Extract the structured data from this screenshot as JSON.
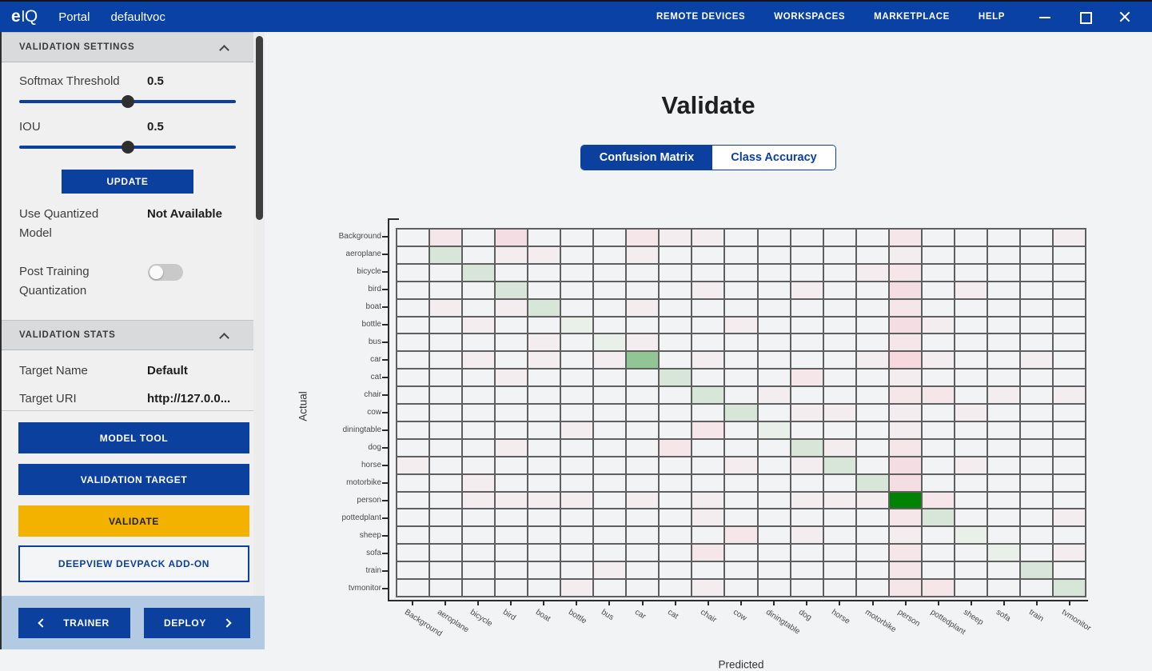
{
  "titlebar": {
    "logo": "eIQ",
    "portal": "Portal",
    "project": "defaultvoc",
    "menu": [
      "REMOTE DEVICES",
      "WORKSPACES",
      "MARKETPLACE",
      "HELP"
    ]
  },
  "sidebar": {
    "validation_settings": {
      "header": "VALIDATION SETTINGS",
      "softmax_label": "Softmax Threshold",
      "softmax_value": "0.5",
      "softmax_percent": 50,
      "iou_label": "IOU",
      "iou_value": "0.5",
      "iou_percent": 50,
      "update_button": "UPDATE",
      "use_quantized_label": "Use Quantized Model",
      "use_quantized_value": "Not Available",
      "ptq_label": "Post Training Quantization",
      "ptq_enabled": false
    },
    "validation_stats": {
      "header": "VALIDATION STATS",
      "target_name_label": "Target Name",
      "target_name_value": "Default",
      "target_uri_label": "Target URI",
      "target_uri_value": "http://127.0.0..."
    },
    "buttons": {
      "model_tool": "MODEL TOOL",
      "validation_target": "VALIDATION TARGET",
      "validate": "VALIDATE",
      "devpack": "DEEPVIEW DEVPACK ADD-ON"
    },
    "footer": {
      "trainer": "TRAINER",
      "deploy": "DEPLOY"
    }
  },
  "main": {
    "title": "Validate",
    "tabs": [
      {
        "label": "Confusion Matrix",
        "active": true
      },
      {
        "label": "Class Accuracy",
        "active": false
      }
    ]
  },
  "chart_data": {
    "type": "heatmap",
    "title": "Confusion Matrix",
    "xlabel": "Predicted",
    "ylabel": "Actual",
    "legend": "none",
    "categories": [
      "Background",
      "aeroplane",
      "bicycle",
      "bird",
      "boat",
      "bottle",
      "bus",
      "car",
      "cat",
      "chair",
      "cow",
      "diningtable",
      "dog",
      "horse",
      "motorbike",
      "person",
      "pottedplant",
      "sheep",
      "sofa",
      "train",
      "tvmonitor"
    ],
    "base_cell_color": "#f2f3f5",
    "grid_color": "#5f5f5f",
    "palette": {
      "g1": "#e9f0ea",
      "g2": "#d7e6d8",
      "g3": "#92c594",
      "g4": "#028202",
      "p1": "#f4edef",
      "p2": "#f5e6e9",
      "p3": "#f5dee3",
      "p4": "#f6d8de"
    },
    "cells": [
      [
        "aeroplane",
        "aeroplane",
        "g2"
      ],
      [
        "bicycle",
        "bicycle",
        "g2"
      ],
      [
        "bird",
        "bird",
        "g2"
      ],
      [
        "boat",
        "boat",
        "g2"
      ],
      [
        "bottle",
        "bottle",
        "g1"
      ],
      [
        "bus",
        "bus",
        "g1"
      ],
      [
        "car",
        "car",
        "g3"
      ],
      [
        "cat",
        "cat",
        "g2"
      ],
      [
        "chair",
        "chair",
        "g2"
      ],
      [
        "cow",
        "cow",
        "g2"
      ],
      [
        "diningtable",
        "diningtable",
        "g1"
      ],
      [
        "dog",
        "dog",
        "g2"
      ],
      [
        "horse",
        "horse",
        "g2"
      ],
      [
        "motorbike",
        "motorbike",
        "g2"
      ],
      [
        "person",
        "person",
        "g4"
      ],
      [
        "pottedplant",
        "pottedplant",
        "g2"
      ],
      [
        "sheep",
        "sheep",
        "g1"
      ],
      [
        "sofa",
        "sofa",
        "g1"
      ],
      [
        "train",
        "train",
        "g2"
      ],
      [
        "tvmonitor",
        "tvmonitor",
        "g2"
      ],
      [
        "Background",
        "aeroplane",
        "p2"
      ],
      [
        "Background",
        "bird",
        "p3"
      ],
      [
        "Background",
        "car",
        "p2"
      ],
      [
        "Background",
        "cat",
        "p1"
      ],
      [
        "Background",
        "chair",
        "p1"
      ],
      [
        "Background",
        "person",
        "p2"
      ],
      [
        "Background",
        "tvmonitor",
        "p1"
      ],
      [
        "aeroplane",
        "bird",
        "p1"
      ],
      [
        "aeroplane",
        "boat",
        "p1"
      ],
      [
        "aeroplane",
        "car",
        "p1"
      ],
      [
        "aeroplane",
        "person",
        "p1"
      ],
      [
        "bicycle",
        "motorbike",
        "p1"
      ],
      [
        "bicycle",
        "person",
        "p2"
      ],
      [
        "bird",
        "chair",
        "p1"
      ],
      [
        "bird",
        "dog",
        "p1"
      ],
      [
        "bird",
        "person",
        "p3"
      ],
      [
        "bird",
        "sheep",
        "p1"
      ],
      [
        "boat",
        "aeroplane",
        "p1"
      ],
      [
        "boat",
        "bird",
        "p1"
      ],
      [
        "boat",
        "car",
        "p1"
      ],
      [
        "boat",
        "person",
        "p2"
      ],
      [
        "bottle",
        "bicycle",
        "p1"
      ],
      [
        "bottle",
        "cow",
        "p1"
      ],
      [
        "bottle",
        "person",
        "p3"
      ],
      [
        "bottle",
        "pottedplant",
        "p1"
      ],
      [
        "bus",
        "boat",
        "p1"
      ],
      [
        "bus",
        "car",
        "p1"
      ],
      [
        "bus",
        "person",
        "p2"
      ],
      [
        "car",
        "bicycle",
        "p1"
      ],
      [
        "car",
        "boat",
        "p1"
      ],
      [
        "car",
        "bus",
        "p1"
      ],
      [
        "car",
        "chair",
        "p1"
      ],
      [
        "car",
        "motorbike",
        "p1"
      ],
      [
        "car",
        "person",
        "p4"
      ],
      [
        "car",
        "pottedplant",
        "p1"
      ],
      [
        "car",
        "train",
        "p1"
      ],
      [
        "cat",
        "bird",
        "p1"
      ],
      [
        "cat",
        "dog",
        "p2"
      ],
      [
        "cat",
        "person",
        "p1"
      ],
      [
        "chair",
        "diningtable",
        "p1"
      ],
      [
        "chair",
        "person",
        "p2"
      ],
      [
        "chair",
        "pottedplant",
        "p2"
      ],
      [
        "chair",
        "sofa",
        "p1"
      ],
      [
        "chair",
        "tvmonitor",
        "p1"
      ],
      [
        "cow",
        "dog",
        "p1"
      ],
      [
        "cow",
        "horse",
        "p1"
      ],
      [
        "cow",
        "person",
        "p1"
      ],
      [
        "cow",
        "sheep",
        "p1"
      ],
      [
        "diningtable",
        "bottle",
        "p1"
      ],
      [
        "diningtable",
        "chair",
        "p2"
      ],
      [
        "diningtable",
        "person",
        "p1"
      ],
      [
        "dog",
        "bird",
        "p1"
      ],
      [
        "dog",
        "cat",
        "p2"
      ],
      [
        "dog",
        "horse",
        "p1"
      ],
      [
        "dog",
        "person",
        "p2"
      ],
      [
        "horse",
        "Background",
        "p1"
      ],
      [
        "horse",
        "cow",
        "p1"
      ],
      [
        "horse",
        "dog",
        "p1"
      ],
      [
        "horse",
        "person",
        "p3"
      ],
      [
        "horse",
        "sheep",
        "p1"
      ],
      [
        "motorbike",
        "bicycle",
        "p1"
      ],
      [
        "motorbike",
        "person",
        "p3"
      ],
      [
        "person",
        "bicycle",
        "p1"
      ],
      [
        "person",
        "bird",
        "p1"
      ],
      [
        "person",
        "boat",
        "p1"
      ],
      [
        "person",
        "bottle",
        "p1"
      ],
      [
        "person",
        "car",
        "p1"
      ],
      [
        "person",
        "chair",
        "p1"
      ],
      [
        "person",
        "dog",
        "p1"
      ],
      [
        "person",
        "horse",
        "p1"
      ],
      [
        "person",
        "motorbike",
        "p1"
      ],
      [
        "person",
        "pottedplant",
        "p2"
      ],
      [
        "pottedplant",
        "chair",
        "p1"
      ],
      [
        "pottedplant",
        "person",
        "p2"
      ],
      [
        "pottedplant",
        "tvmonitor",
        "p1"
      ],
      [
        "sheep",
        "cow",
        "p2"
      ],
      [
        "sheep",
        "dog",
        "p1"
      ],
      [
        "sheep",
        "person",
        "p1"
      ],
      [
        "sofa",
        "chair",
        "p2"
      ],
      [
        "sofa",
        "person",
        "p2"
      ],
      [
        "sofa",
        "tvmonitor",
        "p1"
      ],
      [
        "train",
        "bus",
        "p1"
      ],
      [
        "train",
        "person",
        "p2"
      ],
      [
        "tvmonitor",
        "bottle",
        "p1"
      ],
      [
        "tvmonitor",
        "chair",
        "p1"
      ],
      [
        "tvmonitor",
        "person",
        "p2"
      ],
      [
        "tvmonitor",
        "pottedplant",
        "p2"
      ]
    ]
  },
  "colors": {
    "topbar_blue": "#0941a5",
    "button_blue": "#0b409e",
    "validate_yellow": "#f3b200",
    "footer_blue": "#b3cbe2",
    "sidebar_bg": "#f0f0f1",
    "header_bar": "#d9dadb"
  }
}
